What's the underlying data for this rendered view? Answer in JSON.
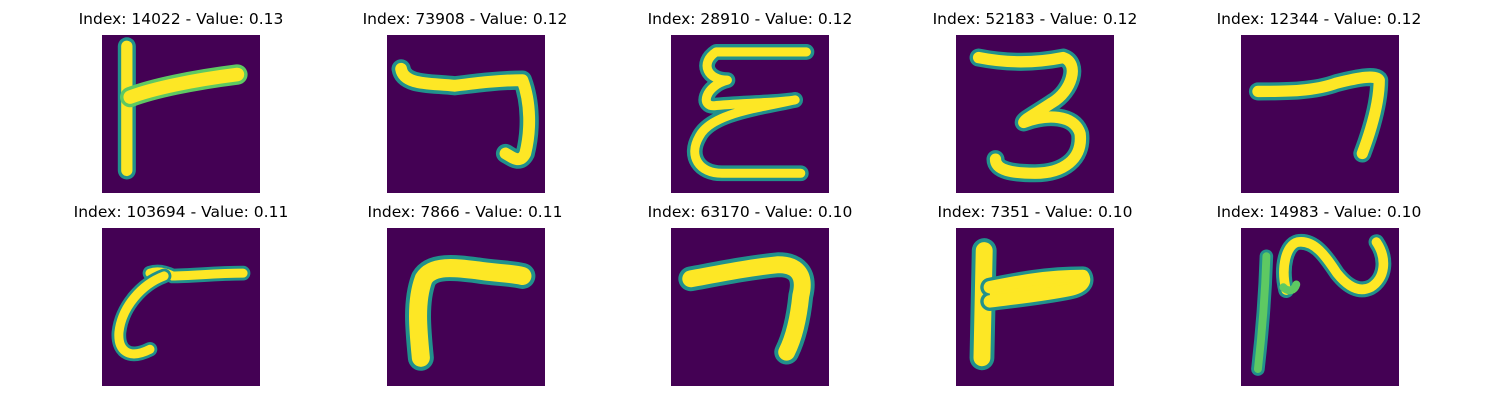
{
  "colors": {
    "background": "#440154",
    "stroke_core": "#fde725",
    "stroke_mid": "#5ec962",
    "stroke_edge": "#21918c"
  },
  "grid": {
    "rows": 2,
    "cols": 5,
    "items": [
      {
        "title": "Index: 14022 - Value: 0.13",
        "glyph": "handwritten-stroke"
      },
      {
        "title": "Index: 73908 - Value: 0.12",
        "glyph": "handwritten-stroke"
      },
      {
        "title": "Index: 28910 - Value: 0.12",
        "glyph": "handwritten-stroke"
      },
      {
        "title": "Index: 52183 - Value: 0.12",
        "glyph": "handwritten-stroke"
      },
      {
        "title": "Index: 12344 - Value: 0.12",
        "glyph": "handwritten-stroke"
      },
      {
        "title": "Index: 103694 - Value: 0.11",
        "glyph": "handwritten-stroke"
      },
      {
        "title": "Index: 7866 - Value: 0.11",
        "glyph": "handwritten-stroke"
      },
      {
        "title": "Index: 63170 - Value: 0.10",
        "glyph": "handwritten-stroke"
      },
      {
        "title": "Index: 7351 - Value: 0.10",
        "glyph": "handwritten-stroke"
      },
      {
        "title": "Index: 14983 - Value: 0.10",
        "glyph": "handwritten-stroke"
      }
    ]
  }
}
